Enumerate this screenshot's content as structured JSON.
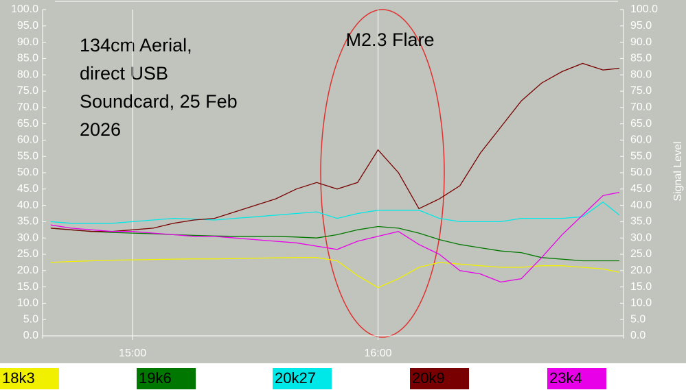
{
  "chart_data": {
    "type": "line",
    "annotation_lines": [
      "134cm Aerial,",
      "direct USB",
      "Soundcard, 25 Feb",
      "2026"
    ],
    "flare_label": "M2.3 Flare",
    "y2_label": "Signal Level",
    "x": [
      880,
      885,
      890,
      895,
      900,
      905,
      910,
      915,
      920,
      925,
      930,
      935,
      940,
      945,
      950,
      955,
      960,
      965,
      970,
      975,
      980,
      985,
      990,
      995,
      1000,
      1005,
      1010,
      1015,
      1019
    ],
    "xlim": [
      878,
      1020
    ],
    "xticks": [
      {
        "value": 900,
        "label": "15:00"
      },
      {
        "value": 960,
        "label": "16:00"
      }
    ],
    "ylim": [
      0,
      100
    ],
    "yticks": [
      {
        "value": 0,
        "label": "0.0"
      },
      {
        "value": 5,
        "label": "5.0"
      },
      {
        "value": 10,
        "label": "10.0"
      },
      {
        "value": 15,
        "label": "15.0"
      },
      {
        "value": 20,
        "label": "20.0"
      },
      {
        "value": 25,
        "label": "25.0"
      },
      {
        "value": 30,
        "label": "30.0"
      },
      {
        "value": 35,
        "label": "35.0"
      },
      {
        "value": 40,
        "label": "40.0"
      },
      {
        "value": 45,
        "label": "45.0"
      },
      {
        "value": 50,
        "label": "50.0"
      },
      {
        "value": 55,
        "label": "55.0"
      },
      {
        "value": 60,
        "label": "60.0"
      },
      {
        "value": 65,
        "label": "65.0"
      },
      {
        "value": 70,
        "label": "70.0"
      },
      {
        "value": 75,
        "label": "75.0"
      },
      {
        "value": 80,
        "label": "80.0"
      },
      {
        "value": 85,
        "label": "85.0"
      },
      {
        "value": 90,
        "label": "90.0"
      },
      {
        "value": 95,
        "label": "95.0"
      },
      {
        "value": 100,
        "label": "100.0"
      }
    ],
    "y2lim": [
      0,
      100
    ],
    "y2ticks": [
      {
        "value": 0,
        "label": "0.0"
      },
      {
        "value": 5,
        "label": "5.0"
      },
      {
        "value": 10,
        "label": "10.0"
      },
      {
        "value": 15,
        "label": "15.0"
      },
      {
        "value": 20,
        "label": "20.0"
      },
      {
        "value": 25,
        "label": "25.0"
      },
      {
        "value": 30,
        "label": "30.0"
      },
      {
        "value": 35,
        "label": "35.0"
      },
      {
        "value": 40,
        "label": "40.0"
      },
      {
        "value": 45,
        "label": "45.0"
      },
      {
        "value": 50,
        "label": "50.0"
      },
      {
        "value": 55,
        "label": "55.0"
      },
      {
        "value": 60,
        "label": "60.0"
      },
      {
        "value": 65,
        "label": "65.0"
      },
      {
        "value": 70,
        "label": "70.0"
      },
      {
        "value": 75,
        "label": "75.0"
      },
      {
        "value": 80,
        "label": "80.0"
      },
      {
        "value": 85,
        "label": "85.0"
      },
      {
        "value": 90,
        "label": "90.0"
      },
      {
        "value": 95,
        "label": "95.0"
      },
      {
        "value": 100,
        "label": "100.0"
      }
    ],
    "series": [
      {
        "name": "18k3",
        "color": "#f0f000",
        "values": [
          22.5,
          22.8,
          23,
          23.2,
          23.3,
          23.4,
          23.5,
          23.6,
          23.6,
          23.7,
          23.8,
          23.9,
          24,
          24,
          23,
          18.5,
          14.8,
          17.5,
          21,
          22.5,
          22,
          21.5,
          21,
          21,
          21.5,
          21.5,
          21,
          20.5,
          19.5
        ]
      },
      {
        "name": "19k6",
        "color": "#007800",
        "values": [
          33,
          32.5,
          32,
          31.7,
          31.5,
          31.3,
          31,
          30.8,
          30.6,
          30.5,
          30.5,
          30.5,
          30.3,
          30,
          31,
          32.5,
          33.5,
          33,
          31.5,
          29.5,
          28,
          27,
          26,
          25.5,
          24,
          23.5,
          23,
          23,
          23
        ]
      },
      {
        "name": "20k27",
        "color": "#00e8e8",
        "values": [
          35,
          34.5,
          34.5,
          34.5,
          35,
          35.5,
          36,
          35.8,
          35.5,
          36,
          36.5,
          37,
          37.5,
          38,
          36,
          37.5,
          38.5,
          38.5,
          38.5,
          36,
          35,
          35,
          35,
          36,
          36,
          36,
          36.5,
          41,
          37
        ]
      },
      {
        "name": "20k9",
        "color": "#780000",
        "values": [
          33,
          32.5,
          32,
          32,
          32.5,
          33,
          34.5,
          35.5,
          36,
          38,
          40,
          42,
          45,
          47,
          45,
          47,
          57,
          50,
          39,
          42,
          46,
          56,
          64,
          72,
          77.5,
          81,
          83.5,
          81.5,
          82
        ]
      },
      {
        "name": "23k4",
        "color": "#e800e8",
        "values": [
          34,
          33,
          32.5,
          32,
          32,
          31.5,
          31,
          30.5,
          30.5,
          30,
          29.5,
          29,
          28.5,
          27.5,
          26.5,
          29,
          30.5,
          32,
          28,
          25,
          20,
          19,
          16.5,
          17.5,
          24,
          31,
          37,
          43,
          44
        ]
      }
    ]
  }
}
